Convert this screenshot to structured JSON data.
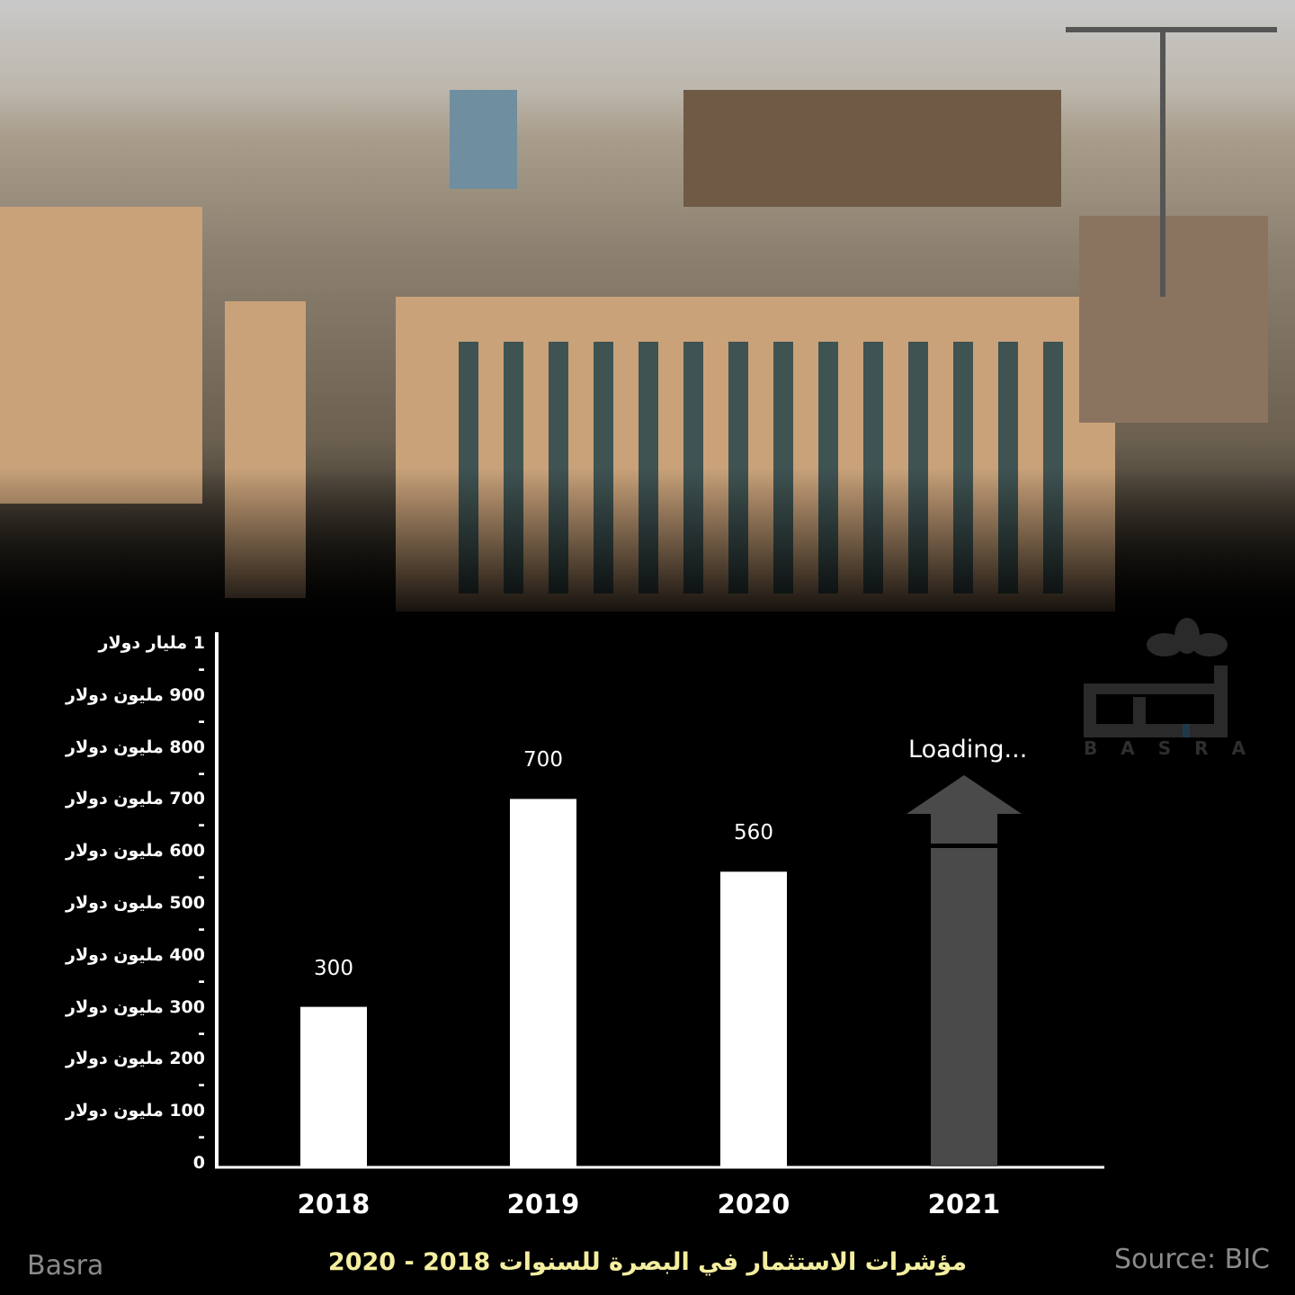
{
  "chart_data": {
    "type": "bar",
    "title": "مؤشرات الاستثمار في البصرة للسنوات 2018 - 2020",
    "categories": [
      "2018",
      "2019",
      "2020",
      "2021"
    ],
    "values": [
      300,
      700,
      560,
      null
    ],
    "value_labels": [
      "300",
      "700",
      "560",
      "Loading..."
    ],
    "ylim": [
      0,
      1000
    ],
    "yticks": [
      {
        "value": 1000,
        "label": "1 مليار دولار"
      },
      {
        "value": 900,
        "label": "900 مليون دولار"
      },
      {
        "value": 800,
        "label": "800 مليون دولار"
      },
      {
        "value": 700,
        "label": "700 مليون دولار"
      },
      {
        "value": 600,
        "label": "600 مليون دولار"
      },
      {
        "value": 500,
        "label": "500 مليون دولار"
      },
      {
        "value": 400,
        "label": "400 مليون دولار"
      },
      {
        "value": 300,
        "label": "300 مليون دولار"
      },
      {
        "value": 200,
        "label": "200 مليون دولار"
      },
      {
        "value": 100,
        "label": "100 مليون دولار"
      },
      {
        "value": 0,
        "label": "0"
      }
    ],
    "minor_tick_label": "-",
    "grid": false,
    "colors": {
      "bar": "#ffffff",
      "pending_bar": "#4a4a4a",
      "title": "#f4eea0"
    }
  },
  "footer": {
    "left": "Basra",
    "right": "Source: BIC"
  },
  "logo": {
    "text": "البصرة",
    "latin": "BASRA"
  }
}
